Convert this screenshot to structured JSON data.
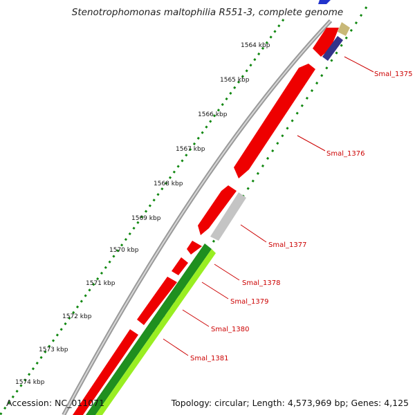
{
  "title": "Stenotrophomonas maltophilia R551-3, complete genome",
  "footer": {
    "accession": "Accession: NC_011071",
    "summary": "Topology: circular; Length: 4,573,969 bp; Genes: 4,125"
  },
  "scale_labels": [
    "1564 kbp",
    "1565 kbp",
    "1566 kbp",
    "1567 kbp",
    "1568 kbp",
    "1569 kbp",
    "1570 kbp",
    "1571 kbp",
    "1572 kbp",
    "1573 kbp",
    "1574 kbp"
  ],
  "genes": [
    {
      "name": "Smal_1375",
      "color": "#cc0000"
    },
    {
      "name": "Smal_1376",
      "color": "#cc0000"
    },
    {
      "name": "Smal_1377",
      "color": "#cc0000"
    },
    {
      "name": "Smal_1378",
      "color": "#cc0000"
    },
    {
      "name": "Smal_1379",
      "color": "#cc0000"
    },
    {
      "name": "Smal_1380",
      "color": "#cc0000"
    },
    {
      "name": "Smal_1381",
      "color": "#cc0000"
    }
  ],
  "colors": {
    "backbone": "#8a8a8a",
    "cds_forward": "#ee0000",
    "cds_gray": "#c4c4c4",
    "track_green_dark": "#1f8f1f",
    "track_green_light": "#99ee22",
    "track_blue": "#2233cc",
    "track_navy": "#33338a",
    "track_tan": "#c8b878",
    "scale_ticks": "#118811",
    "label_line": "#cc0000"
  }
}
